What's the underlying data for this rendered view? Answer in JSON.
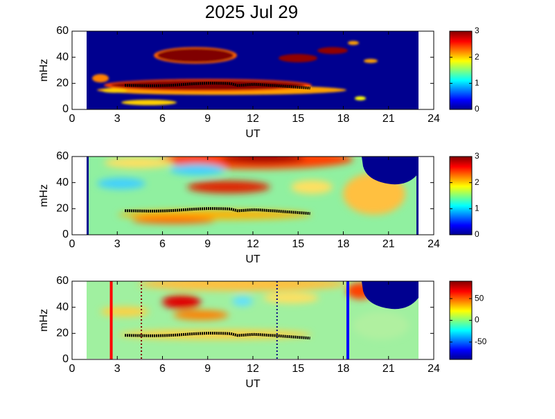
{
  "chart_data": [
    {
      "type": "heatmap",
      "title": "2025 Jul 29",
      "xlabel": "UT",
      "ylabel": "mHz",
      "xlim": [
        0,
        24
      ],
      "xticks": [
        0,
        3,
        6,
        9,
        12,
        15,
        18,
        21,
        24
      ],
      "ylim": [
        0,
        60
      ],
      "yticks": [
        0,
        20,
        40,
        60
      ],
      "colorbar": {
        "lim": [
          0,
          3
        ],
        "ticks": [
          0,
          1,
          2,
          3
        ]
      },
      "trace": {
        "color": "#000000",
        "x": [
          3.5,
          4,
          4.5,
          5,
          5.5,
          6,
          6.5,
          7,
          7.5,
          8,
          8.5,
          9,
          9.5,
          10,
          10.5,
          11,
          11.5,
          12,
          12.5,
          13,
          13.5,
          14,
          14.5,
          15,
          15.5,
          15.8
        ],
        "values": [
          18.5,
          18.4,
          18.3,
          18.2,
          18.2,
          18.3,
          18.5,
          18.8,
          19.2,
          19.6,
          19.9,
          20.1,
          20.1,
          20,
          19.8,
          18.4,
          18.8,
          19.2,
          19,
          18.6,
          18.3,
          17.8,
          17.4,
          17,
          16.6,
          16.3
        ]
      }
    },
    {
      "type": "heatmap",
      "xlabel": "UT",
      "ylabel": "mHz",
      "xlim": [
        0,
        24
      ],
      "xticks": [
        0,
        3,
        6,
        9,
        12,
        15,
        18,
        21,
        24
      ],
      "ylim": [
        0,
        60
      ],
      "yticks": [
        0,
        20,
        40,
        60
      ],
      "colorbar": {
        "lim": [
          0,
          3
        ],
        "ticks": [
          0,
          1,
          2,
          3
        ]
      },
      "trace": {
        "color": "#000000",
        "x": [
          3.5,
          4,
          4.5,
          5,
          5.5,
          6,
          6.5,
          7,
          7.5,
          8,
          8.5,
          9,
          9.5,
          10,
          10.5,
          11,
          11.5,
          12,
          12.5,
          13,
          13.5,
          14,
          14.5,
          15,
          15.5,
          15.8
        ],
        "values": [
          18.5,
          18.4,
          18.3,
          18.2,
          18.2,
          18.3,
          18.5,
          18.8,
          19.2,
          19.6,
          19.9,
          20.1,
          20.1,
          20,
          19.8,
          18.4,
          18.8,
          19.2,
          19,
          18.6,
          18.3,
          17.8,
          17.4,
          17,
          16.6,
          16.3
        ]
      }
    },
    {
      "type": "heatmap",
      "xlabel": "UT",
      "ylabel": "mHz",
      "xlim": [
        0,
        24
      ],
      "xticks": [
        0,
        3,
        6,
        9,
        12,
        15,
        18,
        21,
        24
      ],
      "ylim": [
        0,
        60
      ],
      "yticks": [
        0,
        20,
        40,
        60
      ],
      "colorbar": {
        "lim": [
          -90,
          90
        ],
        "ticks": [
          -50,
          0,
          50
        ]
      },
      "trace": {
        "color": "#000000",
        "x": [
          3.5,
          4,
          4.5,
          5,
          5.5,
          6,
          6.5,
          7,
          7.5,
          8,
          8.5,
          9,
          9.5,
          10,
          10.5,
          11,
          11.5,
          12,
          12.5,
          13,
          13.5,
          14,
          14.5,
          15,
          15.5,
          15.8
        ],
        "values": [
          18.5,
          18.4,
          18.3,
          18.2,
          18.2,
          18.3,
          18.5,
          18.8,
          19.2,
          19.6,
          19.9,
          20.1,
          20.1,
          20,
          19.8,
          18.4,
          18.8,
          19.2,
          19,
          18.6,
          18.3,
          17.8,
          17.4,
          17,
          16.6,
          16.3
        ]
      },
      "vlines": [
        {
          "x": 2.6,
          "color": "#ff0000",
          "style": "solid"
        },
        {
          "x": 4.6,
          "color": "#800000",
          "style": "dotted"
        },
        {
          "x": 13.6,
          "color": "#000080",
          "style": "dotted"
        },
        {
          "x": 18.3,
          "color": "#0000ff",
          "style": "solid"
        }
      ]
    }
  ]
}
